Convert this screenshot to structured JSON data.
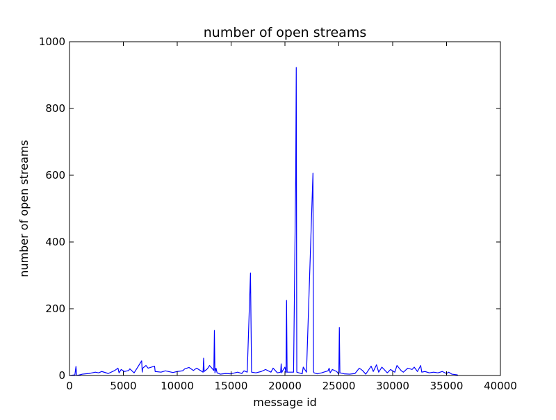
{
  "chart_data": {
    "type": "line",
    "title": "number of open streams",
    "xlabel": "message id",
    "ylabel": "number of open streams",
    "xlim": [
      0,
      40000
    ],
    "ylim": [
      0,
      1000
    ],
    "x_ticks": [
      0,
      5000,
      10000,
      15000,
      20000,
      25000,
      30000,
      35000,
      40000
    ],
    "y_ticks": [
      0,
      200,
      400,
      600,
      800,
      1000
    ],
    "grid": false,
    "line_color": "#0000ff",
    "series": [
      {
        "x": [
          0,
          500,
          600,
          650,
          700,
          1200,
          1800,
          2100,
          2400,
          2700,
          3000,
          3600,
          4200,
          4500,
          4600,
          4800,
          5100,
          5500,
          5600,
          6000,
          6700,
          6750,
          6800,
          7100,
          7300,
          7900,
          7950,
          8500,
          8900,
          9600,
          10000,
          10500,
          10700,
          11100,
          11500,
          11800,
          12400,
          12450,
          12500,
          12800,
          13000,
          13400,
          13450,
          13500,
          13600,
          13700,
          14000,
          14500,
          15000,
          15600,
          16000,
          16200,
          16500,
          16800,
          16900,
          17300,
          17800,
          18200,
          18700,
          18900,
          19300,
          19600,
          19650,
          19700,
          19800,
          20000,
          20100,
          20150,
          20200,
          20800,
          21000,
          21050,
          21100,
          21300,
          21600,
          21700,
          22000,
          22600,
          22650,
          22700,
          23000,
          23400,
          23600,
          24000,
          24100,
          24200,
          24400,
          24800,
          25000,
          25050,
          25100,
          25500,
          26000,
          26500,
          26900,
          27200,
          27500,
          28000,
          28200,
          28500,
          28700,
          29000,
          29500,
          29800,
          30200,
          30400,
          30800,
          31000,
          31400,
          31800,
          32000,
          32300,
          32600,
          32700,
          33000,
          33400,
          33800,
          34200,
          34600,
          35000,
          35200,
          35500,
          36000,
          36050
        ],
        "y": [
          0,
          2,
          27,
          5,
          0,
          4,
          6,
          8,
          10,
          8,
          12,
          6,
          15,
          22,
          8,
          18,
          12,
          15,
          20,
          8,
          44,
          10,
          22,
          30,
          22,
          28,
          12,
          10,
          14,
          9,
          12,
          14,
          20,
          24,
          15,
          22,
          10,
          52,
          12,
          20,
          30,
          15,
          135,
          8,
          22,
          8,
          4,
          6,
          5,
          10,
          6,
          14,
          10,
          307,
          10,
          8,
          12,
          18,
          10,
          22,
          8,
          10,
          35,
          8,
          15,
          25,
          8,
          225,
          10,
          10,
          600,
          923,
          10,
          8,
          5,
          25,
          10,
          606,
          12,
          8,
          5,
          8,
          10,
          14,
          22,
          8,
          18,
          12,
          4,
          144,
          8,
          5,
          4,
          6,
          22,
          15,
          4,
          28,
          12,
          32,
          10,
          25,
          8,
          18,
          10,
          30,
          14,
          10,
          22,
          18,
          25,
          12,
          30,
          10,
          12,
          8,
          10,
          8,
          12,
          6,
          10,
          4,
          2,
          0
        ]
      }
    ]
  }
}
